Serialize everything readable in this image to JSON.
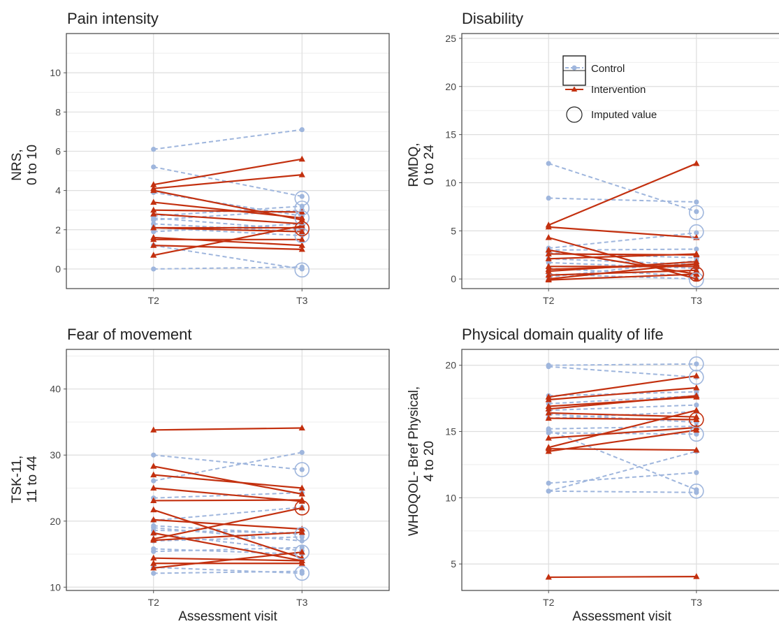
{
  "colors": {
    "control": "#9fb6dd",
    "intervention": "#c3300f",
    "grid_major": "#dedede",
    "grid_minor": "#eeeeee",
    "panel_border": "#444444",
    "text": "#222222"
  },
  "legend": {
    "control_label": "Control",
    "intervention_label": "Intervention",
    "imputed_label": "Imputed value"
  },
  "shared_xlabel": "Assessment visit",
  "chart_data": [
    {
      "type": "line",
      "title": "Pain intensity",
      "ylabel": [
        "NRS,",
        "0 to 10"
      ],
      "categories": [
        "T2",
        "T3"
      ],
      "ylim": [
        -1,
        12
      ],
      "yticks": [
        0,
        2,
        4,
        6,
        8,
        10
      ],
      "ytick_labels": [
        "0",
        "2",
        "4",
        "6",
        "8",
        "10"
      ],
      "grid": true,
      "control": [
        [
          6.1,
          7.1
        ],
        [
          5.2,
          3.7
        ],
        [
          3.9,
          2.7
        ],
        [
          2.7,
          3.2
        ],
        [
          2.5,
          3.0
        ],
        [
          2.6,
          2.0
        ],
        [
          2.3,
          1.9
        ],
        [
          2.1,
          1.7
        ],
        [
          1.9,
          2.3
        ],
        [
          0.0,
          0.1
        ],
        [
          1.2,
          0.0
        ]
      ],
      "control_imputed": [
        [
          3.6,
          "T3"
        ],
        [
          3.1,
          "T3"
        ],
        [
          2.6,
          "T3"
        ],
        [
          1.7,
          "T3"
        ],
        [
          -0.05,
          "T3"
        ]
      ],
      "intervention": [
        [
          4.3,
          5.6
        ],
        [
          4.1,
          4.8
        ],
        [
          4.0,
          2.5
        ],
        [
          3.4,
          2.6
        ],
        [
          3.0,
          2.9
        ],
        [
          2.8,
          2.3
        ],
        [
          2.1,
          1.9
        ],
        [
          1.6,
          1.2
        ],
        [
          1.5,
          1.5
        ],
        [
          1.2,
          1.0
        ],
        [
          0.7,
          2.2
        ],
        [
          2.1,
          2.1
        ]
      ],
      "intervention_imputed": [
        [
          2.05,
          "T3"
        ]
      ]
    },
    {
      "type": "line",
      "title": "Disability",
      "ylabel": [
        "RMDQ,",
        "0 to 24"
      ],
      "categories": [
        "T2",
        "T3"
      ],
      "ylim": [
        -1,
        25.5
      ],
      "yticks": [
        0,
        5,
        10,
        15,
        20,
        25
      ],
      "ytick_labels": [
        "0",
        "5",
        "10",
        "15",
        "20",
        "25"
      ],
      "grid": true,
      "control": [
        [
          12.0,
          7.0
        ],
        [
          8.4,
          8.0
        ],
        [
          3.2,
          4.8
        ],
        [
          3.0,
          3.1
        ],
        [
          2.7,
          2.2
        ],
        [
          2.1,
          1.5
        ],
        [
          1.7,
          1.1
        ],
        [
          1.1,
          0.3
        ],
        [
          0.5,
          0.0
        ],
        [
          0.2,
          1.9
        ]
      ],
      "control_imputed": [
        [
          6.9,
          "T3"
        ],
        [
          4.9,
          "T3"
        ],
        [
          0.5,
          "T3"
        ],
        [
          -0.1,
          "T3"
        ]
      ],
      "intervention": [
        [
          5.6,
          12.0
        ],
        [
          5.4,
          4.3
        ],
        [
          4.3,
          0.0
        ],
        [
          2.6,
          2.5
        ],
        [
          2.1,
          2.6
        ],
        [
          1.3,
          1.3
        ],
        [
          1.0,
          1.5
        ],
        [
          0.8,
          1.8
        ],
        [
          0.4,
          0.9
        ],
        [
          0.0,
          1.6
        ],
        [
          -0.1,
          0.5
        ],
        [
          3.0,
          0.5
        ]
      ],
      "intervention_imputed": [
        [
          0.5,
          "T3"
        ]
      ]
    },
    {
      "type": "line",
      "title": "Fear of movement",
      "ylabel": [
        "TSK-11,",
        "11 to 44"
      ],
      "categories": [
        "T2",
        "T3"
      ],
      "ylim": [
        9.5,
        46
      ],
      "yticks": [
        10,
        20,
        30,
        40
      ],
      "ytick_labels": [
        "10",
        "20",
        "30",
        "40"
      ],
      "grid": true,
      "control": [
        [
          30.0,
          27.8
        ],
        [
          26.1,
          30.4
        ],
        [
          23.5,
          24.3
        ],
        [
          20.1,
          22.1
        ],
        [
          19.3,
          18.0
        ],
        [
          19.0,
          17.0
        ],
        [
          18.6,
          18.2
        ],
        [
          18.1,
          15.5
        ],
        [
          17.0,
          17.6
        ],
        [
          15.8,
          15.0
        ],
        [
          15.4,
          16.0
        ],
        [
          13.0,
          12.1
        ],
        [
          12.1,
          12.4
        ]
      ],
      "control_imputed": [
        [
          27.8,
          "T3"
        ],
        [
          18.0,
          "T3"
        ],
        [
          15.3,
          "T3"
        ],
        [
          12.1,
          "T3"
        ]
      ],
      "intervention": [
        [
          33.8,
          34.1
        ],
        [
          28.3,
          24.1
        ],
        [
          27.0,
          25.0
        ],
        [
          25.0,
          23.0
        ],
        [
          23.1,
          23.2
        ],
        [
          21.7,
          14.4
        ],
        [
          20.2,
          18.8
        ],
        [
          18.2,
          14.0
        ],
        [
          17.3,
          22.0
        ],
        [
          17.1,
          18.3
        ],
        [
          14.4,
          14.0
        ],
        [
          12.9,
          15.3
        ],
        [
          13.6,
          13.6
        ]
      ],
      "intervention_imputed": [
        [
          22.0,
          "T3"
        ]
      ]
    },
    {
      "type": "line",
      "title": "Physical domain quality of life",
      "ylabel": [
        "WHOQOL- Bref Physical,",
        "4 to 20"
      ],
      "categories": [
        "T2",
        "T3"
      ],
      "ylim": [
        3.0,
        21.2
      ],
      "yticks": [
        5,
        10,
        15,
        20
      ],
      "ytick_labels": [
        "5",
        "10",
        "15",
        "20"
      ],
      "grid": true,
      "control": [
        [
          20.0,
          20.1
        ],
        [
          19.9,
          19.1
        ],
        [
          17.7,
          18.0
        ],
        [
          17.1,
          17.7
        ],
        [
          16.6,
          17.0
        ],
        [
          16.0,
          16.5
        ],
        [
          15.2,
          15.4
        ],
        [
          15.1,
          10.6
        ],
        [
          14.9,
          14.8
        ],
        [
          11.1,
          11.9
        ],
        [
          10.5,
          13.5
        ],
        [
          10.5,
          10.4
        ],
        [
          16.3,
          15.7
        ]
      ],
      "control_imputed": [
        [
          20.1,
          "T3"
        ],
        [
          19.1,
          "T3"
        ],
        [
          14.8,
          "T3"
        ],
        [
          10.5,
          "T3"
        ]
      ],
      "intervention": [
        [
          17.6,
          19.2
        ],
        [
          17.4,
          18.3
        ],
        [
          16.9,
          17.6
        ],
        [
          16.7,
          17.7
        ],
        [
          16.4,
          16.1
        ],
        [
          16.0,
          15.9
        ],
        [
          14.5,
          15.3
        ],
        [
          13.8,
          16.6
        ],
        [
          13.7,
          13.6
        ],
        [
          13.5,
          15.1
        ],
        [
          4.0,
          4.05
        ]
      ],
      "intervention_imputed": [
        [
          15.9,
          "T3"
        ]
      ]
    }
  ]
}
